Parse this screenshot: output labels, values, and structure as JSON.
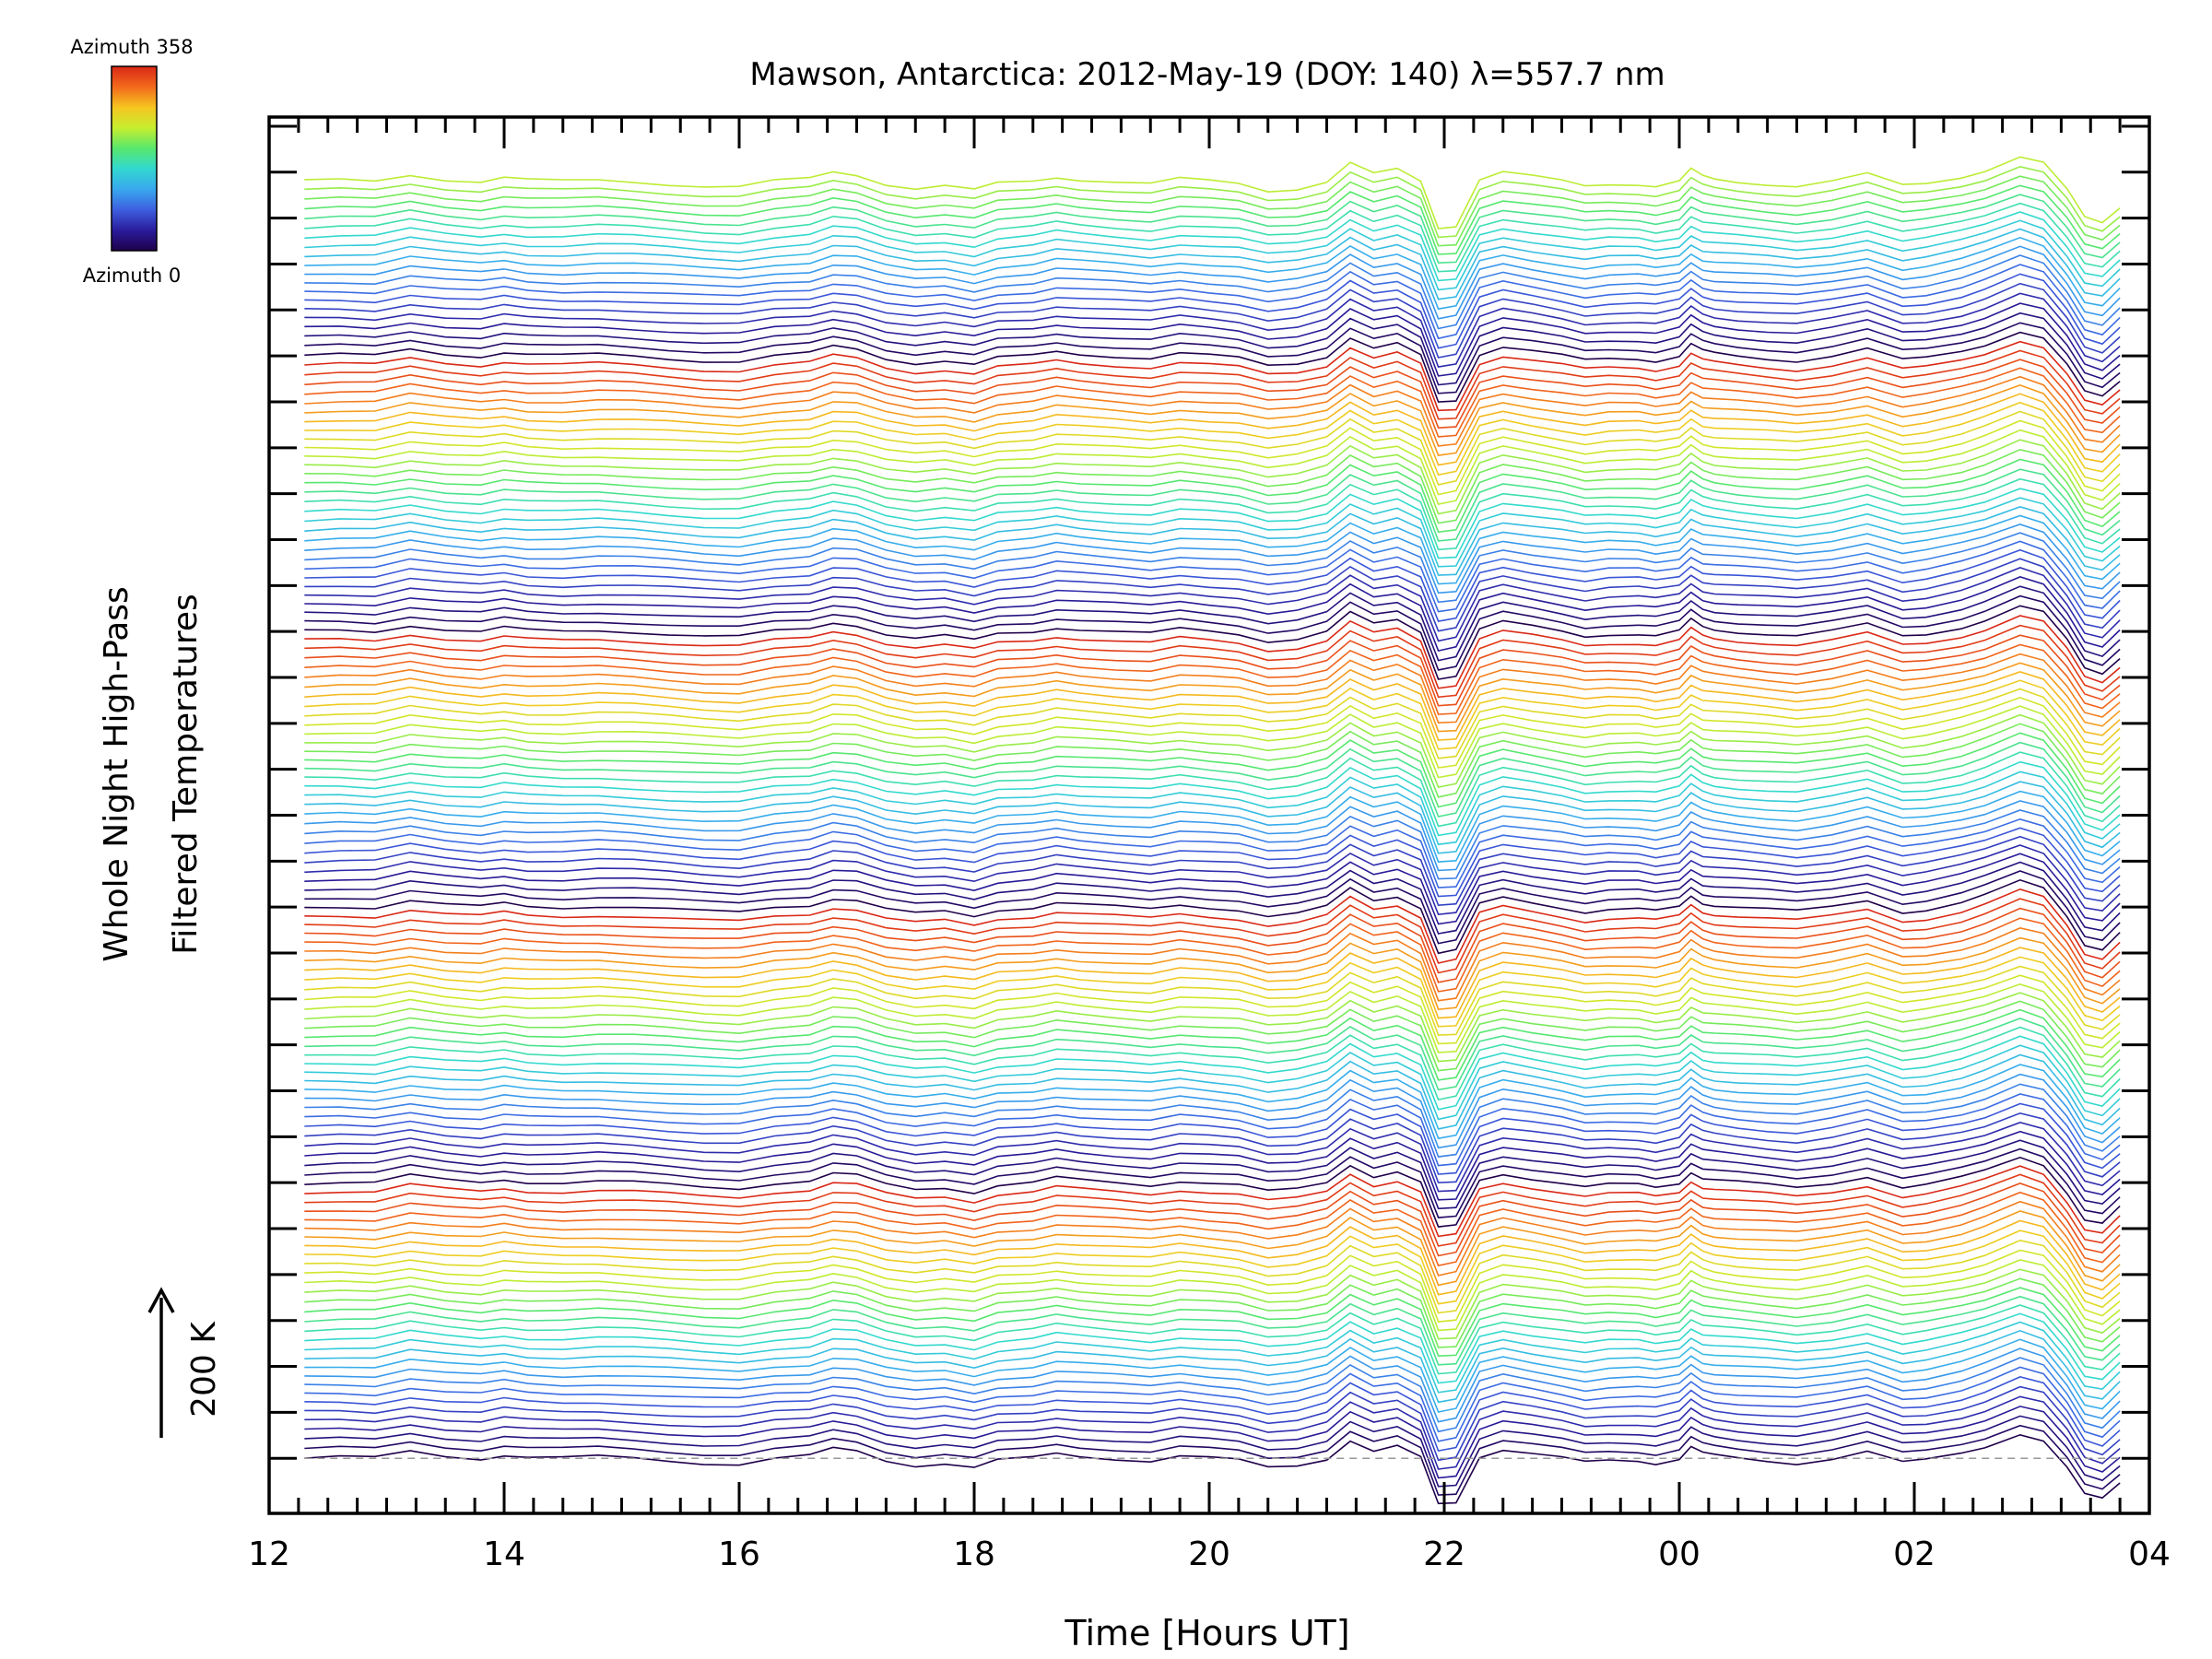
{
  "chart_data": {
    "type": "line",
    "title": "Mawson, Antarctica: 2012-May-19 (DOY: 140) λ=557.7 nm",
    "xlabel": "Time [Hours UT]",
    "ylabel_line1": "Whole Night High-Pass",
    "ylabel_line2": "Filtered Temperatures",
    "scale_bar_label": "200 K",
    "colorbar": {
      "top_label": "Azimuth 358",
      "bottom_label": "Azimuth 0",
      "colors": [
        "#20004a",
        "#2a1c9c",
        "#3d5fe0",
        "#38a8ee",
        "#32d8d0",
        "#58e86c",
        "#c7ee2e",
        "#f6c520",
        "#f2691c",
        "#d92816"
      ]
    },
    "x_tick_labels": [
      "12",
      "14",
      "16",
      "18",
      "20",
      "22",
      "00",
      "02",
      "04"
    ],
    "x_major_ticks_hours": [
      12,
      14,
      16,
      18,
      20,
      22,
      24,
      26,
      28
    ],
    "x_range_hours": [
      12,
      28
    ],
    "y_range": [
      -120,
      2920
    ],
    "trace_count": 140,
    "trace_offset_k": 20,
    "azimuth_cycle_traces": 30,
    "series_x_hours": [
      12.3,
      12.6,
      12.9,
      13.2,
      13.5,
      13.8,
      14.0,
      14.2,
      14.5,
      14.8,
      15.1,
      15.4,
      15.7,
      16.0,
      16.3,
      16.6,
      16.8,
      17.0,
      17.25,
      17.5,
      17.75,
      18.0,
      18.2,
      18.5,
      18.7,
      18.9,
      19.2,
      19.5,
      19.75,
      20.0,
      20.25,
      20.5,
      20.75,
      21.0,
      21.2,
      21.4,
      21.6,
      21.8,
      21.95,
      22.1,
      22.3,
      22.5,
      22.75,
      23.0,
      23.2,
      23.4,
      23.65,
      23.8,
      24.0,
      24.1,
      24.2,
      24.3,
      24.5,
      24.75,
      25.0,
      25.3,
      25.6,
      25.9,
      26.1,
      26.4,
      26.6,
      26.9,
      27.1,
      27.3,
      27.45,
      27.6,
      27.75
    ],
    "series_y_k": [
      0,
      2,
      0,
      15,
      5,
      0,
      8,
      2,
      0,
      3,
      0,
      -5,
      -10,
      -12,
      0,
      5,
      20,
      15,
      -5,
      -15,
      -10,
      -20,
      -5,
      0,
      10,
      5,
      0,
      -5,
      5,
      0,
      -5,
      -20,
      -15,
      0,
      40,
      15,
      25,
      0,
      -100,
      -95,
      5,
      20,
      10,
      0,
      -10,
      -5,
      -5,
      -10,
      0,
      25,
      10,
      5,
      0,
      -5,
      -10,
      0,
      15,
      -10,
      -5,
      10,
      25,
      55,
      40,
      -20,
      -80,
      -90,
      -55
    ],
    "reference_line_y": 0
  }
}
